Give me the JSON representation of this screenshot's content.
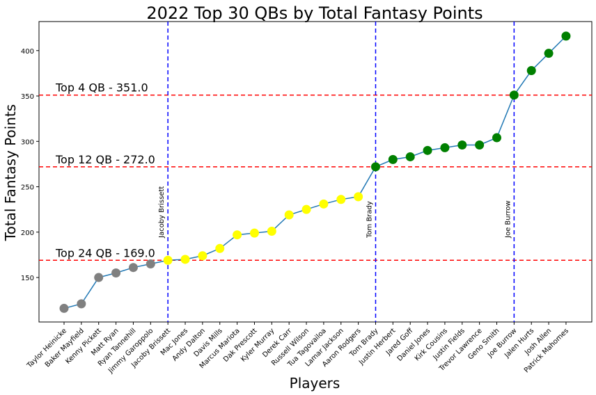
{
  "chart_data": {
    "type": "line",
    "title": "2022 Top 30 QBs by Total Fantasy Points",
    "xlabel": "Players",
    "ylabel": "Total Fantasy Points",
    "ylim": [
      101,
      432
    ],
    "yticks": [
      150,
      200,
      250,
      300,
      350,
      400
    ],
    "grid": false,
    "line_color": "#1f77b4",
    "categories": [
      "Taylor Heinicke",
      "Baker Mayfield",
      "Kenny Pickett",
      "Matt Ryan",
      "Ryan Tannehill",
      "Jimmy Garoppolo",
      "Jacoby Brissett",
      "Mac Jones",
      "Andy Dalton",
      "Davis Mills",
      "Marcus Mariota",
      "Dak Prescott",
      "Kyler Murray",
      "Derek Carr",
      "Russell Wilson",
      "Tua Tagovailoa",
      "Lamar Jackson",
      "Aaron Rodgers",
      "Tom Brady",
      "Justin Herbert",
      "Jared Goff",
      "Daniel Jones",
      "Kirk Cousins",
      "Justin Fields",
      "Trevor Lawrence",
      "Geno Smith",
      "Joe Burrow",
      "Jalen Hurts",
      "Josh Allen",
      "Patrick Mahomes"
    ],
    "values": [
      116,
      121,
      150,
      155,
      161,
      165,
      169,
      170,
      174,
      182,
      197,
      199,
      201,
      219,
      225,
      231,
      236,
      239,
      272,
      280,
      283,
      290,
      293,
      296,
      296,
      304,
      351,
      378,
      397,
      416
    ],
    "point_colors": [
      "#808080",
      "#808080",
      "#808080",
      "#808080",
      "#808080",
      "#808080",
      "#ffff00",
      "#ffff00",
      "#ffff00",
      "#ffff00",
      "#ffff00",
      "#ffff00",
      "#ffff00",
      "#ffff00",
      "#ffff00",
      "#ffff00",
      "#ffff00",
      "#ffff00",
      "#008000",
      "#008000",
      "#008000",
      "#008000",
      "#008000",
      "#008000",
      "#008000",
      "#008000",
      "#008000",
      "#008000",
      "#008000",
      "#008000"
    ],
    "hlines": [
      {
        "value": 351.0,
        "label": "Top 4 QB - 351.0",
        "color": "#ff0000"
      },
      {
        "value": 272.0,
        "label": "Top 12 QB - 272.0",
        "color": "#ff0000"
      },
      {
        "value": 169.0,
        "label": "Top 24 QB - 169.0",
        "color": "#ff0000"
      }
    ],
    "vlines": [
      {
        "category": "Jacoby Brissett",
        "label": "Jacoby Brissett",
        "color": "#0000ff"
      },
      {
        "category": "Tom Brady",
        "label": "Tom Brady",
        "color": "#0000ff"
      },
      {
        "category": "Joe Burrow",
        "label": "Joe Burrow",
        "color": "#0000ff"
      }
    ]
  }
}
